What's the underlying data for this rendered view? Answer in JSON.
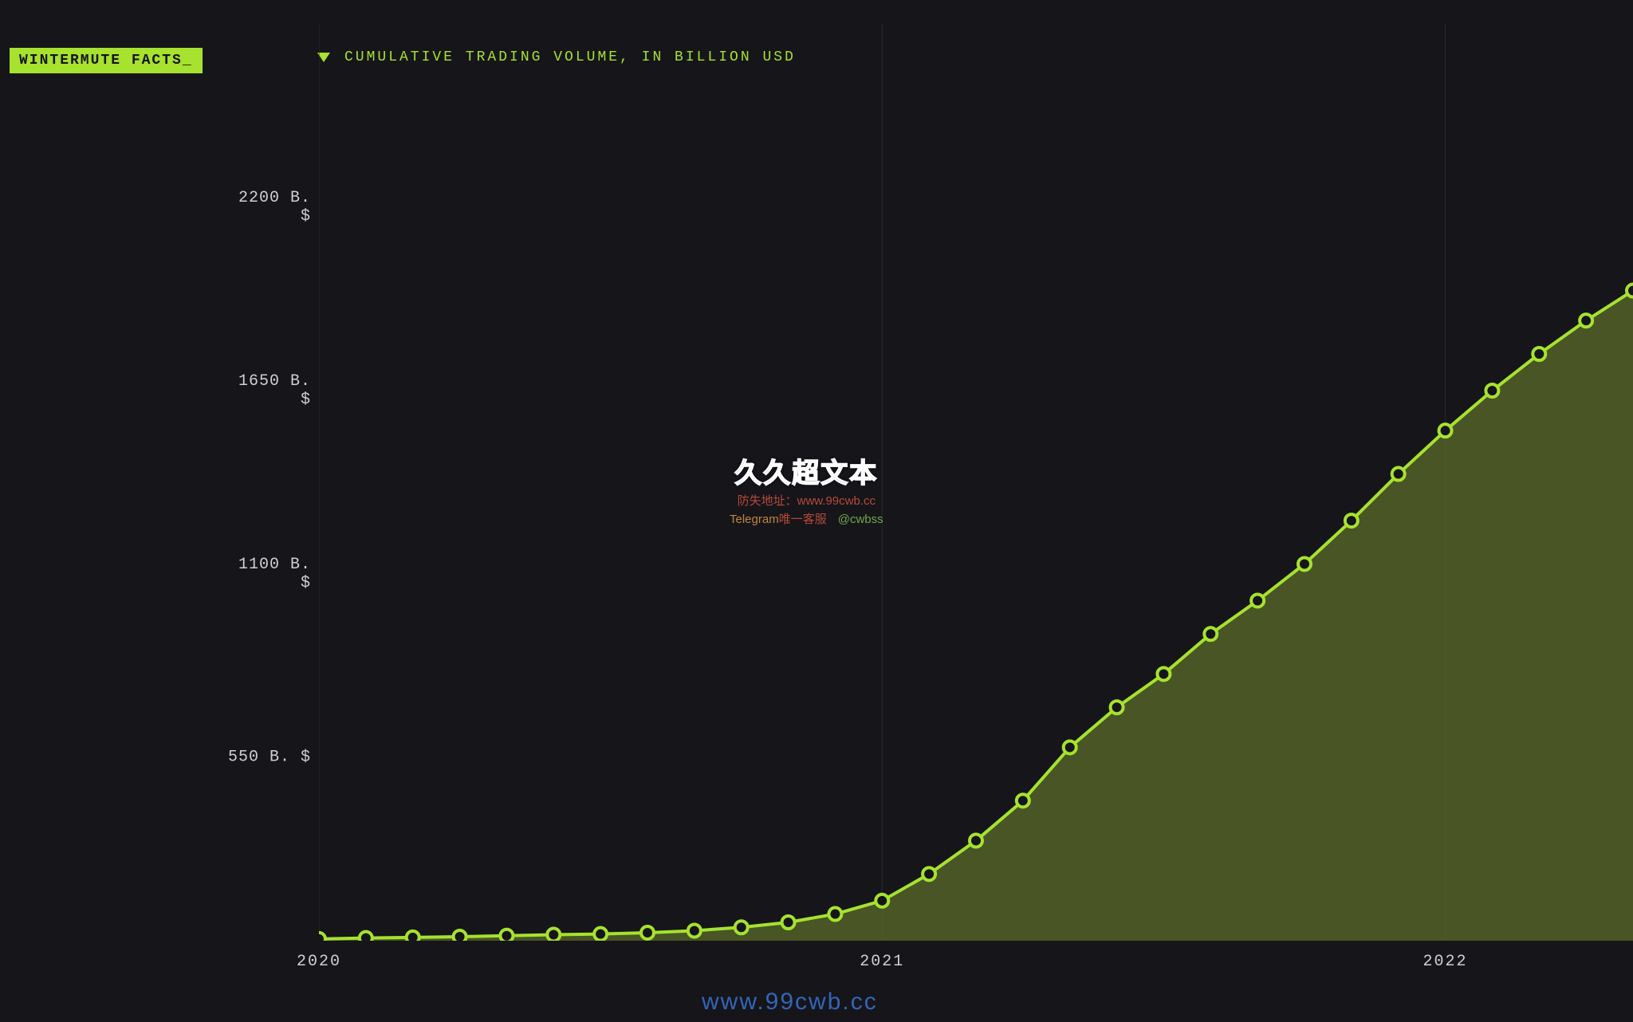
{
  "badge": {
    "text": "WINTERMUTE FACTS_"
  },
  "chart": {
    "type": "area-line",
    "title": "CUMULATIVE TRADING VOLUME, IN BILLION USD",
    "background_color": "#16151a",
    "line_color": "#a6e22e",
    "line_width": 4,
    "area_fill": "#5b6b2a",
    "area_opacity": 0.75,
    "marker": {
      "shape": "circle",
      "radius": 8,
      "fill": "#16151a",
      "stroke": "#a6e22e",
      "stroke_width": 4
    },
    "grid": {
      "show_vertical": true,
      "show_horizontal": false,
      "color": "#2a292e",
      "width": 1
    },
    "x": {
      "domain_index": [
        0,
        28
      ],
      "gridlines_at": [
        0,
        12,
        24
      ],
      "tick_labels": [
        {
          "at": 0,
          "label": "2020"
        },
        {
          "at": 12,
          "label": "2021"
        },
        {
          "at": 24,
          "label": "2022"
        }
      ]
    },
    "y": {
      "domain": [
        0,
        2750
      ],
      "tick_labels": [
        {
          "at": 550,
          "label": "550 B. $"
        },
        {
          "at": 1100,
          "label": "1100 B. $"
        },
        {
          "at": 1650,
          "label": "1650 B. $"
        },
        {
          "at": 2200,
          "label": "2200 B. $"
        }
      ],
      "label_color": "#cfcfcf",
      "label_fontsize": 20
    },
    "series": {
      "name": "cumulative_volume_busd",
      "index": [
        0,
        1,
        2,
        3,
        4,
        5,
        6,
        7,
        8,
        9,
        10,
        11,
        12,
        13,
        14,
        15,
        16,
        17,
        18,
        19,
        20,
        21,
        22,
        23,
        24,
        25,
        26,
        27,
        28
      ],
      "values": [
        5,
        8,
        10,
        12,
        15,
        18,
        20,
        24,
        30,
        40,
        55,
        80,
        120,
        200,
        300,
        420,
        580,
        700,
        800,
        920,
        1020,
        1130,
        1260,
        1400,
        1530,
        1650,
        1760,
        1860,
        1950
      ]
    }
  },
  "watermarks": {
    "logo_cn": "久久超文本",
    "line2_label": "防失地址：",
    "line2_url": "www.99cwb.cc",
    "line3_t1": "Telegram",
    "line3_t2": "唯一客服",
    "line3_t3": "@cwbss",
    "footer": "www.99cwb.cc"
  }
}
